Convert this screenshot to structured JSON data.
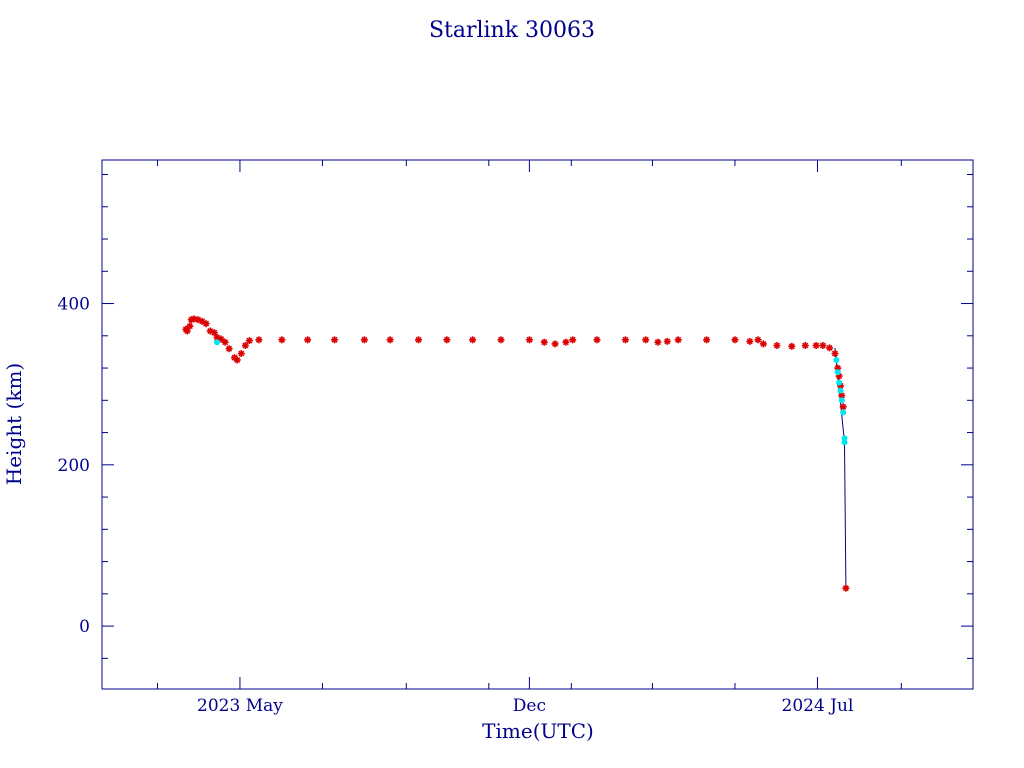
{
  "colors": {
    "axis": "#00008b",
    "text": "#00008b",
    "main_points": "#dd0000",
    "secondary_points": "#00e5ee",
    "trace_line": "#00008b"
  },
  "chart_data": {
    "type": "scatter",
    "title": "Starlink 30063",
    "xlabel": "Time(UTC)",
    "ylabel": "Height (km)",
    "grid": false,
    "legend": "none",
    "x_unit": "date",
    "xlim": [
      "2023-01-19",
      "2024-10-24"
    ],
    "ylim": [
      -78,
      578
    ],
    "x_ticks": [
      {
        "date": "2023-05-01",
        "label": "2023 May"
      },
      {
        "date": "2023-12-01",
        "label": "Dec"
      },
      {
        "date": "2024-07-01",
        "label": "2024 Jul"
      }
    ],
    "y_ticks": [
      {
        "value": 0,
        "label": "0"
      },
      {
        "value": 200,
        "label": "200"
      },
      {
        "value": 400,
        "label": "400"
      }
    ],
    "series": [
      {
        "marker": "star",
        "color": "#dd0000",
        "points": [
          [
            "2023-03-22",
            368
          ],
          [
            "2023-03-23",
            366
          ],
          [
            "2023-03-25",
            372
          ],
          [
            "2023-03-26",
            380
          ],
          [
            "2023-03-28",
            381
          ],
          [
            "2023-03-31",
            380
          ],
          [
            "2023-04-03",
            378
          ],
          [
            "2023-04-06",
            375
          ],
          [
            "2023-04-09",
            366
          ],
          [
            "2023-04-12",
            364
          ],
          [
            "2023-04-14",
            358
          ],
          [
            "2023-04-17",
            356
          ],
          [
            "2023-04-20",
            352
          ],
          [
            "2023-04-23",
            344
          ],
          [
            "2023-04-27",
            333
          ],
          [
            "2023-04-29",
            330
          ],
          [
            "2023-05-02",
            338
          ],
          [
            "2023-05-05",
            348
          ],
          [
            "2023-05-08",
            354
          ],
          [
            "2023-05-15",
            355
          ],
          [
            "2023-06-01",
            355
          ],
          [
            "2023-06-20",
            355
          ],
          [
            "2023-07-10",
            355
          ],
          [
            "2023-08-01",
            355
          ],
          [
            "2023-08-20",
            355
          ],
          [
            "2023-09-10",
            355
          ],
          [
            "2023-10-01",
            355
          ],
          [
            "2023-10-20",
            355
          ],
          [
            "2023-11-10",
            355
          ],
          [
            "2023-12-01",
            355
          ],
          [
            "2023-12-12",
            352
          ],
          [
            "2023-12-20",
            350
          ],
          [
            "2023-12-28",
            352
          ],
          [
            "2024-01-02",
            355
          ],
          [
            "2024-01-20",
            355
          ],
          [
            "2024-02-10",
            355
          ],
          [
            "2024-02-25",
            355
          ],
          [
            "2024-03-05",
            352
          ],
          [
            "2024-03-12",
            353
          ],
          [
            "2024-03-20",
            355
          ],
          [
            "2024-04-10",
            355
          ],
          [
            "2024-05-01",
            355
          ],
          [
            "2024-05-12",
            353
          ],
          [
            "2024-05-18",
            355
          ],
          [
            "2024-05-22",
            350
          ],
          [
            "2024-06-01",
            348
          ],
          [
            "2024-06-12",
            347
          ],
          [
            "2024-06-22",
            348
          ],
          [
            "2024-06-30",
            348
          ],
          [
            "2024-07-05",
            348
          ],
          [
            "2024-07-10",
            345
          ],
          [
            "2024-07-14",
            338
          ],
          [
            "2024-07-16",
            320
          ],
          [
            "2024-07-17",
            310
          ],
          [
            "2024-07-18",
            298
          ],
          [
            "2024-07-19",
            286
          ],
          [
            "2024-07-20",
            272
          ],
          [
            "2024-07-22",
            47
          ]
        ]
      },
      {
        "marker": "circle",
        "color": "#00e5ee",
        "points": [
          [
            "2023-04-14",
            352
          ],
          [
            "2024-07-15",
            330
          ],
          [
            "2024-07-16",
            315
          ],
          [
            "2024-07-17",
            302
          ],
          [
            "2024-07-18",
            292
          ],
          [
            "2024-07-19",
            280
          ],
          [
            "2024-07-20",
            265
          ],
          [
            "2024-07-21",
            233
          ],
          [
            "2024-07-21",
            228
          ]
        ]
      }
    ],
    "trace_line": [
      [
        "2024-07-14",
        345
      ],
      [
        "2024-07-21",
        228
      ],
      [
        "2024-07-22",
        47
      ]
    ]
  }
}
